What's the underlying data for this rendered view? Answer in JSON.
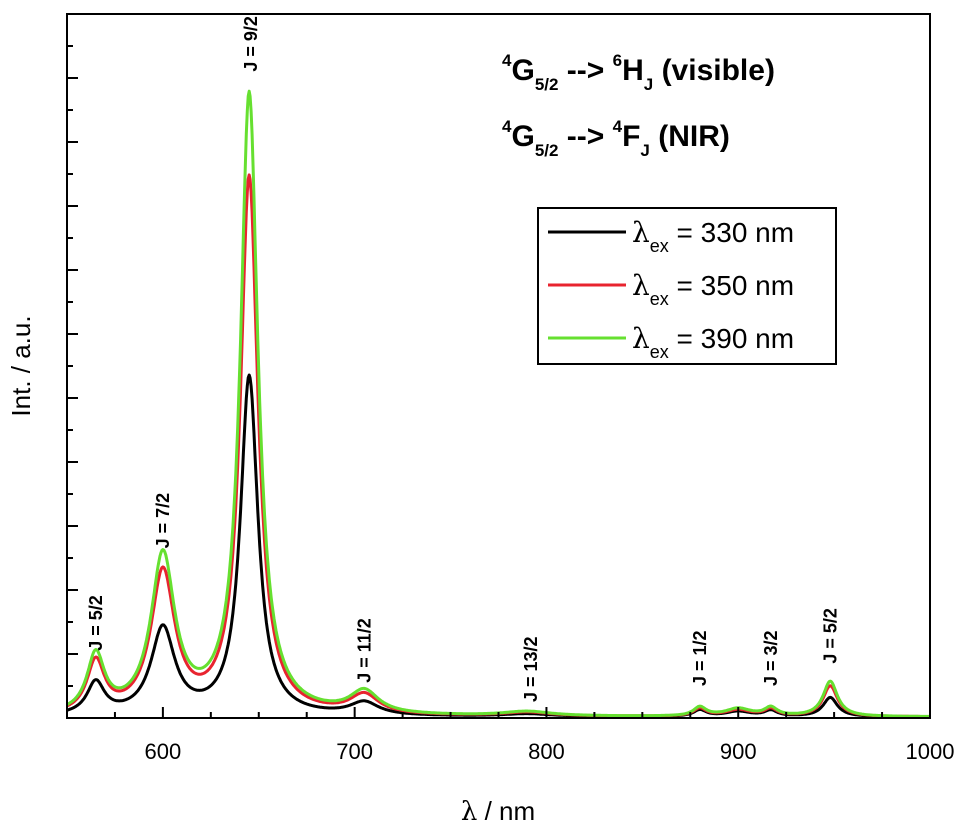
{
  "chart_data": {
    "type": "line",
    "xlabel": {
      "symbol": "λ",
      "unit": " / nm"
    },
    "ylabel": "Int. / a.u.",
    "xlim": [
      550,
      1000
    ],
    "ylim": [
      0,
      110
    ],
    "xticks": [
      600,
      700,
      800,
      900,
      1000
    ],
    "xtick_labels": [
      "600",
      "700",
      "800",
      "900",
      "1000"
    ],
    "legend_position": "top-right",
    "transitions": [
      {
        "sup1": "4",
        "main1": "G",
        "sub1": "5/2",
        "arrow": " --> ",
        "sup2": "6",
        "main2": "H",
        "sub2": "J",
        "suffix": " (visible)"
      },
      {
        "sup1": "4",
        "main1": "G",
        "sub1": "5/2",
        "arrow": " --> ",
        "sup2": "4",
        "main2": "F",
        "sub2": "J",
        "suffix": " (NIR)"
      }
    ],
    "peak_labels": [
      {
        "text": "J = 5/2",
        "x": 565,
        "y": 10.5
      },
      {
        "text": "J = 7/2",
        "x": 600,
        "y": 26.5
      },
      {
        "text": "J = 9/2",
        "x": 646,
        "y": 101
      },
      {
        "text": "J = 11/2",
        "x": 705,
        "y": 5.5
      },
      {
        "text": "J = 13/2",
        "x": 792,
        "y": 2.5
      },
      {
        "text": "J = 1/2",
        "x": 880,
        "y": 5
      },
      {
        "text": "J = 3/2",
        "x": 917,
        "y": 5
      },
      {
        "text": "J = 5/2",
        "x": 948,
        "y": 8.5
      }
    ],
    "series": [
      {
        "name_symbol": "λ",
        "name_sub": "ex",
        "name_rest": " = 330 nm",
        "color": "#000000",
        "peaks": [
          [
            565,
            5.0,
            5.5
          ],
          [
            600,
            13.5,
            7.5
          ],
          [
            645,
            53,
            5.5
          ],
          [
            705,
            2.0,
            9.0
          ],
          [
            790,
            0.4,
            15
          ],
          [
            880,
            1.0,
            4.0
          ],
          [
            900,
            0.8,
            8.0
          ],
          [
            917,
            0.9,
            4.0
          ],
          [
            948,
            3.0,
            4.5
          ]
        ]
      },
      {
        "name_symbol": "λ",
        "name_sub": "ex",
        "name_rest": " = 350 nm",
        "color": "#e8242f",
        "peaks": [
          [
            565,
            8.0,
            5.5
          ],
          [
            600,
            22.0,
            7.5
          ],
          [
            645,
            84,
            5.5
          ],
          [
            705,
            3.0,
            9.0
          ],
          [
            790,
            0.6,
            15
          ],
          [
            880,
            1.2,
            4.0
          ],
          [
            900,
            1.0,
            8.0
          ],
          [
            917,
            1.1,
            4.0
          ],
          [
            948,
            4.8,
            4.5
          ]
        ]
      },
      {
        "name_symbol": "λ",
        "name_sub": "ex",
        "name_rest": " = 390 nm",
        "color": "#66e030",
        "peaks": [
          [
            565,
            9.0,
            5.5
          ],
          [
            600,
            24.5,
            7.5
          ],
          [
            645,
            97,
            5.5
          ],
          [
            705,
            3.5,
            9.0
          ],
          [
            790,
            0.7,
            15
          ],
          [
            880,
            1.4,
            4.0
          ],
          [
            900,
            1.2,
            8.0
          ],
          [
            917,
            1.3,
            4.0
          ],
          [
            948,
            5.5,
            4.5
          ]
        ]
      }
    ]
  }
}
